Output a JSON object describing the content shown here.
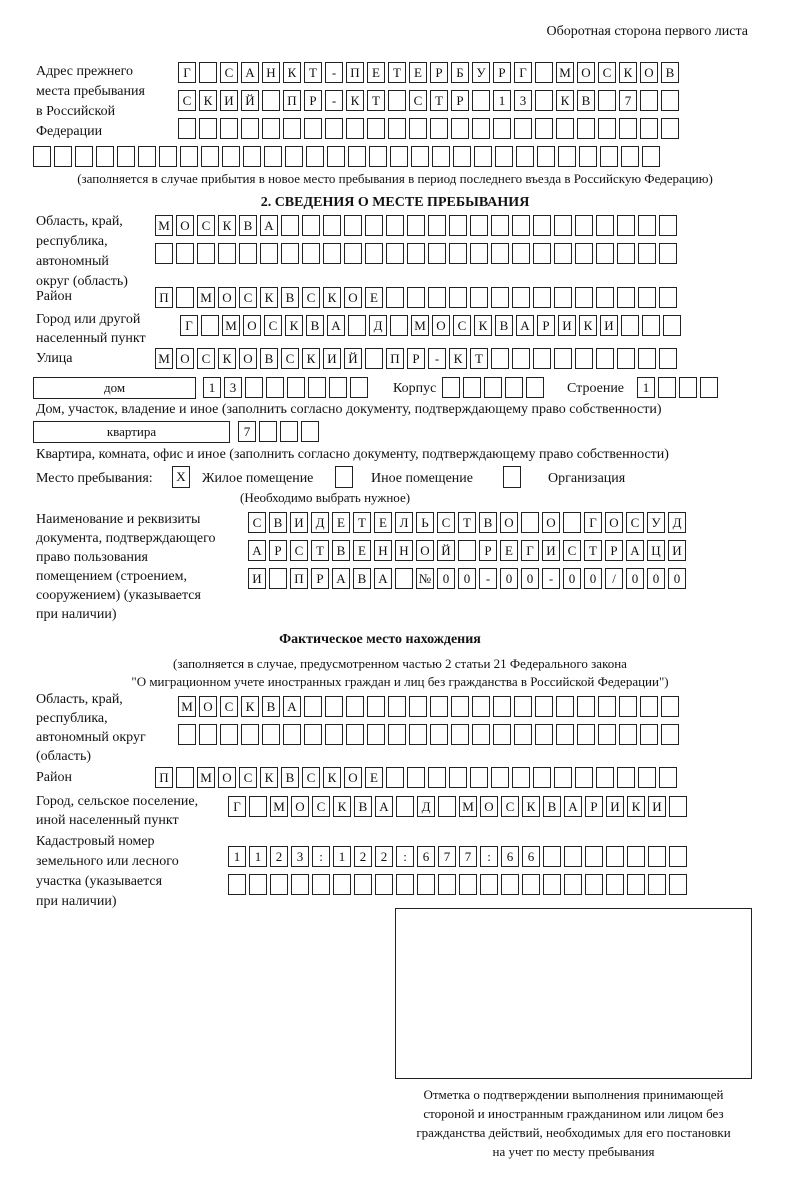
{
  "header": "Оборотная сторона первого листа",
  "prev_address": {
    "label": "Адрес прежнего\nместа пребывания\nв Российской\nФедерации",
    "rows": [
      [
        "Г",
        "",
        "С",
        "А",
        "Н",
        "К",
        "Т",
        "-",
        "П",
        "Е",
        "Т",
        "Е",
        "Р",
        "Б",
        "У",
        "Р",
        "Г",
        "",
        "М",
        "О",
        "С",
        "К",
        "О",
        "В"
      ],
      [
        "С",
        "К",
        "И",
        "Й",
        "",
        "П",
        "Р",
        "-",
        "К",
        "Т",
        "",
        "С",
        "Т",
        "Р",
        "",
        "1",
        "3",
        "",
        "К",
        "В",
        "",
        "7",
        "",
        ""
      ],
      [
        "",
        "",
        "",
        "",
        "",
        "",
        "",
        "",
        "",
        "",
        "",
        "",
        "",
        "",
        "",
        "",
        "",
        "",
        "",
        "",
        "",
        "",
        "",
        ""
      ],
      [
        "",
        "",
        "",
        "",
        "",
        "",
        "",
        "",
        "",
        "",
        "",
        "",
        "",
        "",
        "",
        "",
        "",
        "",
        "",
        "",
        "",
        "",
        "",
        "",
        "",
        "",
        "",
        "",
        "",
        ""
      ]
    ],
    "note": "(заполняется в случае прибытия в новое место пребывания в период последнего въезда в Российскую Федерацию)"
  },
  "section2": {
    "title": "2. СВЕДЕНИЯ О МЕСТЕ ПРЕБЫВАНИЯ",
    "region_label": "Область, край,\nреспублика,\nавтономный\nокруг (область)",
    "region_rows": [
      [
        "М",
        "О",
        "С",
        "К",
        "В",
        "А",
        "",
        "",
        "",
        "",
        "",
        "",
        "",
        "",
        "",
        "",
        "",
        "",
        "",
        "",
        "",
        "",
        "",
        "",
        ""
      ],
      [
        "",
        "",
        "",
        "",
        "",
        "",
        "",
        "",
        "",
        "",
        "",
        "",
        "",
        "",
        "",
        "",
        "",
        "",
        "",
        "",
        "",
        "",
        "",
        "",
        ""
      ]
    ],
    "district_label": "Район",
    "district": [
      "П",
      "",
      "М",
      "О",
      "С",
      "К",
      "В",
      "С",
      "К",
      "О",
      "Е",
      "",
      "",
      "",
      "",
      "",
      "",
      "",
      "",
      "",
      "",
      "",
      "",
      "",
      ""
    ],
    "city_label": "Город или другой\nнаселенный пункт",
    "city": [
      "Г",
      "",
      "М",
      "О",
      "С",
      "К",
      "В",
      "А",
      "",
      "Д",
      "",
      "М",
      "О",
      "С",
      "К",
      "В",
      "А",
      "Р",
      "И",
      "К",
      "И",
      "",
      "",
      ""
    ],
    "street_label": "Улица",
    "street": [
      "М",
      "О",
      "С",
      "К",
      "О",
      "В",
      "С",
      "К",
      "И",
      "Й",
      "",
      "П",
      "Р",
      "-",
      "К",
      "Т",
      "",
      "",
      "",
      "",
      "",
      "",
      "",
      "",
      ""
    ],
    "house_type": "дом",
    "house": [
      "1",
      "3",
      "",
      "",
      "",
      "",
      "",
      ""
    ],
    "korpus_label": "Корпус",
    "korpus": [
      "",
      "",
      "",
      "",
      ""
    ],
    "building_label": "Строение",
    "building": [
      "1",
      "",
      "",
      ""
    ],
    "house_note": "Дом, участок, владение и иное (заполнить согласно документу, подтверждающему право собственности)",
    "flat_type": "квартира",
    "flat": [
      "7",
      "",
      "",
      ""
    ],
    "flat_note": "Квартира, комната, офис и иное (заполнить согласно документу, подтверждающему право собственности)",
    "place_label": "Место пребывания:",
    "place_options": [
      {
        "label": "Жилое помещение",
        "mark": "X"
      },
      {
        "label": "Иное помещение",
        "mark": ""
      },
      {
        "label": "Организация",
        "mark": ""
      }
    ],
    "place_note": "(Необходимо выбрать нужное)",
    "doc_label": "Наименование и реквизиты\nдокумента, подтверждающего\nправо пользования\nпомещением (строением,\nсооружением) (указывается\nпри наличии)",
    "doc_rows": [
      [
        "С",
        "В",
        "И",
        "Д",
        "Е",
        "Т",
        "Е",
        "Л",
        "Ь",
        "С",
        "Т",
        "В",
        "О",
        "",
        "О",
        "",
        "Г",
        "О",
        "С",
        "У",
        "Д"
      ],
      [
        "А",
        "Р",
        "С",
        "Т",
        "В",
        "Е",
        "Н",
        "Н",
        "О",
        "Й",
        "",
        "Р",
        "Е",
        "Г",
        "И",
        "С",
        "Т",
        "Р",
        "А",
        "Ц",
        "И"
      ],
      [
        "И",
        "",
        "П",
        "Р",
        "А",
        "В",
        "А",
        "",
        "№",
        "0",
        "0",
        "-",
        "0",
        "0",
        "-",
        "0",
        "0",
        "/",
        "0",
        "0",
        "0"
      ]
    ]
  },
  "actual": {
    "title": "Фактическое место нахождения",
    "note1": "(заполняется в случае, предусмотренном частью 2 статьи 21 Федерального закона",
    "note2": "\"О миграционном учете иностранных граждан и лиц без гражданства в Российской Федерации\")",
    "region_label": "Область, край,\nреспублика,\nавтономный округ\n(область)",
    "region_rows": [
      [
        "М",
        "О",
        "С",
        "К",
        "В",
        "А",
        "",
        "",
        "",
        "",
        "",
        "",
        "",
        "",
        "",
        "",
        "",
        "",
        "",
        "",
        "",
        "",
        "",
        ""
      ],
      [
        "",
        "",
        "",
        "",
        "",
        "",
        "",
        "",
        "",
        "",
        "",
        "",
        "",
        "",
        "",
        "",
        "",
        "",
        "",
        "",
        "",
        "",
        "",
        ""
      ]
    ],
    "district_label": "Район",
    "district": [
      "П",
      "",
      "М",
      "О",
      "С",
      "К",
      "В",
      "С",
      "К",
      "О",
      "Е",
      "",
      "",
      "",
      "",
      "",
      "",
      "",
      "",
      "",
      "",
      "",
      "",
      "",
      ""
    ],
    "city_label": "Город, сельское поселение,\nиной населенный пункт",
    "city": [
      "Г",
      "",
      "М",
      "О",
      "С",
      "К",
      "В",
      "А",
      "",
      "Д",
      "",
      "М",
      "О",
      "С",
      "К",
      "В",
      "А",
      "Р",
      "И",
      "К",
      "И",
      ""
    ],
    "cadastre_label": "Кадастровый номер\nземельного или лесного\nучастка (указывается\nпри наличии)",
    "cadastre_rows": [
      [
        "1",
        "1",
        "2",
        "3",
        ":",
        "1",
        "2",
        "2",
        ":",
        "6",
        "7",
        "7",
        ":",
        "6",
        "6",
        "",
        "",
        "",
        "",
        "",
        "",
        ""
      ],
      [
        "",
        "",
        "",
        "",
        "",
        "",
        "",
        "",
        "",
        "",
        "",
        "",
        "",
        "",
        "",
        "",
        "",
        "",
        "",
        "",
        "",
        ""
      ]
    ]
  },
  "stamp_caption": "Отметка о подтверждении выполнения принимающей\nстороной и иностранным гражданином или лицом без\nгражданства действий, необходимых для его постановки\nна учет по месту пребывания"
}
